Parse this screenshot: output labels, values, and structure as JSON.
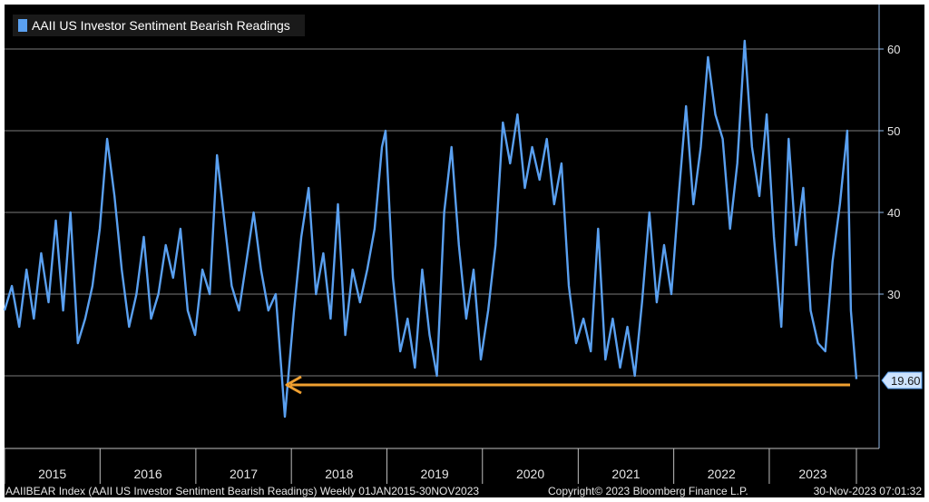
{
  "chart_data": {
    "type": "line",
    "title": "AAII US Investor Sentiment Bearish Readings",
    "xlabel": "",
    "ylabel": "",
    "ylim": [
      10,
      63
    ],
    "yticks": [
      30,
      40,
      50,
      60
    ],
    "year_ticks": [
      "2015",
      "2016",
      "2017",
      "2018",
      "2019",
      "2020",
      "2021",
      "2022",
      "2023"
    ],
    "grid": true,
    "legend": "top-left",
    "last_value_label": "19.60",
    "annotation": "orange arrow pointing left from latest reading (19.60) to the similar low in late 2017",
    "series": [
      {
        "name": "AAII US Investor Sentiment Bearish Readings",
        "color": "#5aa0f0",
        "points": [
          [
            "2015-01-01",
            28
          ],
          [
            "2015-01-29",
            31
          ],
          [
            "2015-02-26",
            26
          ],
          [
            "2015-03-26",
            33
          ],
          [
            "2015-04-23",
            27
          ],
          [
            "2015-05-21",
            35
          ],
          [
            "2015-06-18",
            29
          ],
          [
            "2015-07-16",
            39
          ],
          [
            "2015-08-13",
            28
          ],
          [
            "2015-09-10",
            40
          ],
          [
            "2015-10-08",
            24
          ],
          [
            "2015-11-05",
            27
          ],
          [
            "2015-12-03",
            31
          ],
          [
            "2015-12-31",
            38
          ],
          [
            "2016-01-28",
            49
          ],
          [
            "2016-02-25",
            42
          ],
          [
            "2016-03-24",
            33
          ],
          [
            "2016-04-21",
            26
          ],
          [
            "2016-05-19",
            30
          ],
          [
            "2016-06-16",
            37
          ],
          [
            "2016-07-14",
            27
          ],
          [
            "2016-08-11",
            30
          ],
          [
            "2016-09-08",
            36
          ],
          [
            "2016-10-06",
            32
          ],
          [
            "2016-11-03",
            38
          ],
          [
            "2016-12-01",
            28
          ],
          [
            "2016-12-29",
            25
          ],
          [
            "2017-01-26",
            33
          ],
          [
            "2017-02-23",
            30
          ],
          [
            "2017-03-23",
            47
          ],
          [
            "2017-04-20",
            39
          ],
          [
            "2017-05-18",
            31
          ],
          [
            "2017-06-15",
            28
          ],
          [
            "2017-07-13",
            34
          ],
          [
            "2017-08-10",
            40
          ],
          [
            "2017-09-07",
            33
          ],
          [
            "2017-10-05",
            28
          ],
          [
            "2017-11-02",
            30
          ],
          [
            "2017-12-07",
            15
          ],
          [
            "2018-01-11",
            28
          ],
          [
            "2018-02-08",
            37
          ],
          [
            "2018-03-08",
            43
          ],
          [
            "2018-04-05",
            30
          ],
          [
            "2018-05-03",
            35
          ],
          [
            "2018-05-31",
            27
          ],
          [
            "2018-06-28",
            41
          ],
          [
            "2018-07-26",
            25
          ],
          [
            "2018-08-23",
            33
          ],
          [
            "2018-09-20",
            29
          ],
          [
            "2018-10-18",
            33
          ],
          [
            "2018-11-15",
            38
          ],
          [
            "2018-12-13",
            48
          ],
          [
            "2018-12-27",
            50
          ],
          [
            "2019-01-24",
            32
          ],
          [
            "2019-02-21",
            23
          ],
          [
            "2019-03-21",
            27
          ],
          [
            "2019-04-18",
            21
          ],
          [
            "2019-05-16",
            33
          ],
          [
            "2019-06-13",
            25
          ],
          [
            "2019-07-11",
            20
          ],
          [
            "2019-08-08",
            40
          ],
          [
            "2019-09-05",
            48
          ],
          [
            "2019-10-03",
            36
          ],
          [
            "2019-10-31",
            27
          ],
          [
            "2019-11-28",
            33
          ],
          [
            "2019-12-26",
            22
          ],
          [
            "2020-01-23",
            28
          ],
          [
            "2020-02-20",
            36
          ],
          [
            "2020-03-19",
            51
          ],
          [
            "2020-04-16",
            46
          ],
          [
            "2020-05-14",
            52
          ],
          [
            "2020-06-11",
            43
          ],
          [
            "2020-07-09",
            48
          ],
          [
            "2020-08-06",
            44
          ],
          [
            "2020-09-03",
            49
          ],
          [
            "2020-10-01",
            41
          ],
          [
            "2020-10-29",
            46
          ],
          [
            "2020-11-26",
            31
          ],
          [
            "2020-12-24",
            24
          ],
          [
            "2021-01-21",
            27
          ],
          [
            "2021-02-18",
            23
          ],
          [
            "2021-03-18",
            38
          ],
          [
            "2021-04-15",
            22
          ],
          [
            "2021-05-13",
            27
          ],
          [
            "2021-06-10",
            21
          ],
          [
            "2021-07-08",
            26
          ],
          [
            "2021-08-05",
            20
          ],
          [
            "2021-09-02",
            29
          ],
          [
            "2021-09-30",
            40
          ],
          [
            "2021-10-28",
            29
          ],
          [
            "2021-11-25",
            36
          ],
          [
            "2021-12-23",
            30
          ],
          [
            "2022-01-20",
            42
          ],
          [
            "2022-02-17",
            53
          ],
          [
            "2022-03-17",
            41
          ],
          [
            "2022-04-14",
            48
          ],
          [
            "2022-05-12",
            59
          ],
          [
            "2022-06-09",
            52
          ],
          [
            "2022-07-07",
            49
          ],
          [
            "2022-08-04",
            38
          ],
          [
            "2022-09-01",
            46
          ],
          [
            "2022-09-29",
            61
          ],
          [
            "2022-10-27",
            48
          ],
          [
            "2022-11-24",
            42
          ],
          [
            "2022-12-22",
            52
          ],
          [
            "2023-01-19",
            37
          ],
          [
            "2023-02-16",
            26
          ],
          [
            "2023-03-16",
            49
          ],
          [
            "2023-04-13",
            36
          ],
          [
            "2023-05-11",
            43
          ],
          [
            "2023-06-08",
            28
          ],
          [
            "2023-07-06",
            24
          ],
          [
            "2023-08-03",
            23
          ],
          [
            "2023-08-31",
            34
          ],
          [
            "2023-09-28",
            41
          ],
          [
            "2023-10-26",
            50
          ],
          [
            "2023-11-09",
            28
          ],
          [
            "2023-11-30",
            19.6
          ]
        ]
      }
    ]
  },
  "footer": {
    "left": "AAIIBEAR Index (AAII US Investor Sentiment Bearish Readings)  Weekly 01JAN2015-30NOV2023",
    "center": "Copyright© 2023 Bloomberg Finance L.P.",
    "right": "30-Nov-2023 07:01:32"
  },
  "colors": {
    "background": "#000000",
    "line": "#5aa0f0",
    "grid": "#7a7a7a",
    "arrow": "#f0a030",
    "last_label_bg": "#cde3ff"
  }
}
